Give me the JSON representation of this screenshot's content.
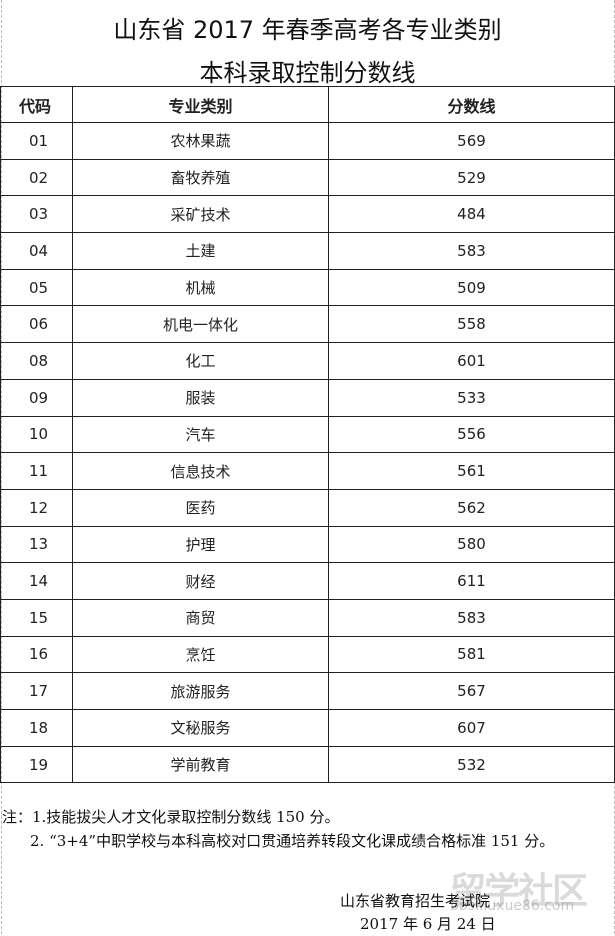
{
  "title_line1": "山东省 2017 年春季高考各专业类别",
  "title_line2": "本科录取控制分数线",
  "table": {
    "headers": [
      "代码",
      "专业类别",
      "分数线"
    ],
    "rows": [
      [
        "01",
        "农林果蔬",
        "569"
      ],
      [
        "02",
        "畜牧养殖",
        "529"
      ],
      [
        "03",
        "采矿技术",
        "484"
      ],
      [
        "04",
        "土建",
        "583"
      ],
      [
        "05",
        "机械",
        "509"
      ],
      [
        "06",
        "机电一体化",
        "558"
      ],
      [
        "08",
        "化工",
        "601"
      ],
      [
        "09",
        "服装",
        "533"
      ],
      [
        "10",
        "汽车",
        "556"
      ],
      [
        "11",
        "信息技术",
        "561"
      ],
      [
        "12",
        "医药",
        "562"
      ],
      [
        "13",
        "护理",
        "580"
      ],
      [
        "14",
        "财经",
        "611"
      ],
      [
        "15",
        "商贸",
        "583"
      ],
      [
        "16",
        "烹饪",
        "581"
      ],
      [
        "17",
        "旅游服务",
        "567"
      ],
      [
        "18",
        "文秘服务",
        "607"
      ],
      [
        "19",
        "学前教育",
        "532"
      ]
    ]
  },
  "notes": [
    "注：1.技能拔尖人才文化录取控制分数线 150 分。",
    "2. “3+4”中职学校与本科高校对口贯通培养转段文化课成绩合格标准 151 分。"
  ],
  "signature": {
    "org": "山东省教育招生考试院",
    "date": "2017 年 6 月 24 日"
  },
  "watermark": {
    "logo_text": "留学社区",
    "url": "bbs.liuxue86.com"
  }
}
